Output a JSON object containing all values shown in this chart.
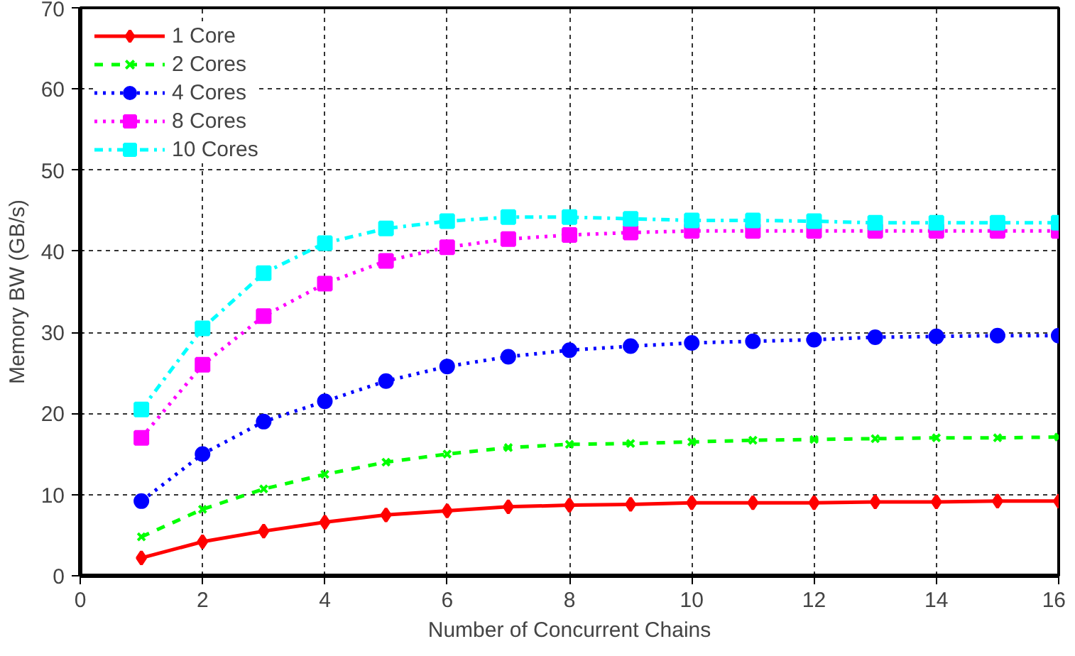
{
  "chart_data": {
    "type": "line",
    "xlabel": "Number of Concurrent Chains",
    "ylabel": "Memory BW (GB/s)",
    "x": [
      1,
      2,
      3,
      4,
      5,
      6,
      7,
      8,
      9,
      10,
      11,
      12,
      13,
      14,
      15,
      16
    ],
    "xlim": [
      0,
      16
    ],
    "ylim": [
      0,
      70
    ],
    "xticks": [
      0,
      2,
      4,
      6,
      8,
      10,
      12,
      14,
      16
    ],
    "yticks": [
      0,
      10,
      20,
      30,
      40,
      50,
      60,
      70
    ],
    "grid": true,
    "legend": "top left",
    "series": [
      {
        "name": "1 Core",
        "color": "#ff0000",
        "marker": "diamond",
        "line_style": "solid",
        "values": [
          2.2,
          4.2,
          5.5,
          6.6,
          7.5,
          8,
          8.5,
          8.7,
          8.8,
          9,
          9,
          9,
          9.1,
          9.1,
          9.2,
          9.2
        ]
      },
      {
        "name": "2 Cores",
        "color": "#00ff00",
        "marker": "cross",
        "line_style": "dashed",
        "values": [
          4.8,
          8.2,
          10.7,
          12.5,
          14,
          15,
          15.8,
          16.2,
          16.3,
          16.5,
          16.7,
          16.8,
          16.9,
          17,
          17,
          17.1
        ]
      },
      {
        "name": "4 Cores",
        "color": "#0000ff",
        "marker": "circle",
        "line_style": "dotted",
        "values": [
          9.2,
          15,
          19,
          21.5,
          24,
          25.8,
          27,
          27.8,
          28.3,
          28.7,
          28.9,
          29.1,
          29.4,
          29.5,
          29.6,
          29.6
        ]
      },
      {
        "name": "8 Cores",
        "color": "#ff00ff",
        "marker": "square",
        "line_style": "dotted",
        "values": [
          17,
          26,
          32,
          36,
          38.8,
          40.5,
          41.5,
          42,
          42.3,
          42.5,
          42.5,
          42.5,
          42.5,
          42.5,
          42.5,
          42.5
        ]
      },
      {
        "name": "10 Cores",
        "color": "#00ffff",
        "marker": "square",
        "line_style": "dashdot",
        "values": [
          20.5,
          30.5,
          37.3,
          41,
          42.8,
          43.7,
          44.2,
          44.2,
          44,
          43.8,
          43.8,
          43.7,
          43.5,
          43.5,
          43.5,
          43.5
        ]
      }
    ]
  }
}
